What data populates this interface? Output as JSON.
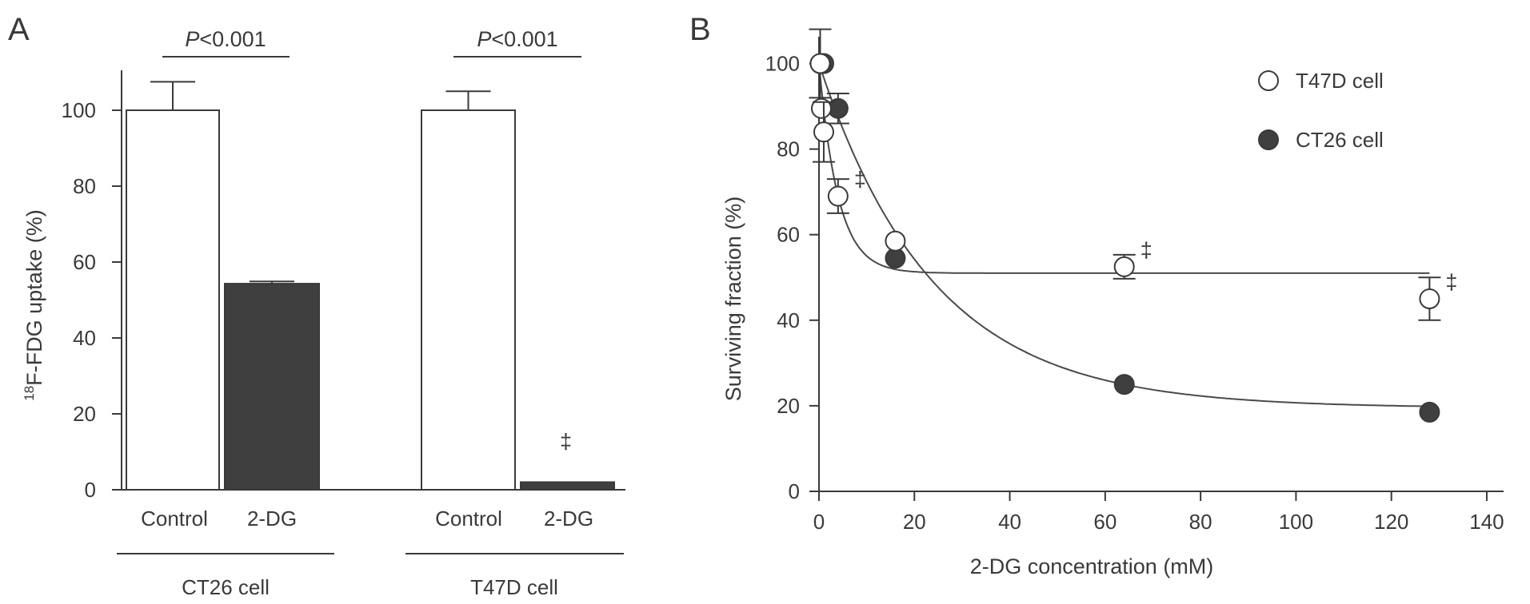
{
  "panels": [
    {
      "letter": "A",
      "chart_data": {
        "type": "bar",
        "ylabel_sup": "18",
        "ylabel": "F-FDG uptake (%)",
        "ylim": [
          0,
          110
        ],
        "yticks": [
          0,
          20,
          40,
          60,
          80,
          100
        ],
        "groups": [
          {
            "name": "CT26 cell",
            "bars": [
              {
                "label": "Control",
                "value": 100,
                "error": 7.5,
                "fill": "white",
                "annotation": ""
              },
              {
                "label": "2-DG",
                "value": 54.3,
                "error": 0.6,
                "fill": "dark",
                "annotation": ""
              }
            ],
            "significance": {
              "italic": "P",
              "rest": "<0.001"
            }
          },
          {
            "name": "T47D cell",
            "bars": [
              {
                "label": "Control",
                "value": 100,
                "error": 5,
                "fill": "white",
                "annotation": ""
              },
              {
                "label": "2-DG",
                "value": 2,
                "error": 0,
                "fill": "dark",
                "annotation": "‡"
              }
            ],
            "significance": {
              "italic": "P",
              "rest": "<0.001"
            }
          }
        ]
      }
    },
    {
      "letter": "B",
      "chart_data": {
        "type": "scatter",
        "xlabel": "2-DG concentration (mM)",
        "ylabel": "Surviving fraction (%)",
        "xlim": [
          0,
          140
        ],
        "ylim": [
          0,
          110
        ],
        "xticks": [
          0,
          20,
          40,
          60,
          80,
          100,
          120,
          140
        ],
        "yticks": [
          0,
          20,
          40,
          60,
          80,
          100
        ],
        "legend_position": "top-right",
        "series": [
          {
            "name": "T47D cell",
            "marker": "open-circle",
            "points": [
              {
                "x": 0.25,
                "y": 100,
                "err": 8,
                "mark": ""
              },
              {
                "x": 0.5,
                "y": 89.5,
                "err": 0,
                "mark": ""
              },
              {
                "x": 1,
                "y": 84,
                "err": 7,
                "mark": ""
              },
              {
                "x": 4,
                "y": 69,
                "err": 4,
                "mark": "‡"
              },
              {
                "x": 16,
                "y": 58.5,
                "err": 0,
                "mark": ""
              },
              {
                "x": 64,
                "y": 52.5,
                "err": 2.8,
                "mark": "‡"
              },
              {
                "x": 128,
                "y": 45,
                "err": 5,
                "mark": "‡"
              }
            ],
            "fit": {
              "plateau": 51,
              "span": 49,
              "k": 0.25
            }
          },
          {
            "name": "CT26 cell",
            "marker": "filled-circle",
            "points": [
              {
                "x": 0.25,
                "y": 100,
                "err": 0,
                "mark": ""
              },
              {
                "x": 1,
                "y": 100,
                "err": 0,
                "mark": ""
              },
              {
                "x": 4,
                "y": 89.5,
                "err": 3.5,
                "mark": ""
              },
              {
                "x": 16,
                "y": 54.5,
                "err": 0,
                "mark": ""
              },
              {
                "x": 64,
                "y": 25,
                "err": 0,
                "mark": ""
              },
              {
                "x": 128,
                "y": 18.5,
                "err": 0,
                "mark": ""
              }
            ],
            "fit": {
              "plateau": 19.5,
              "span": 80.5,
              "k": 0.042
            }
          }
        ]
      }
    }
  ]
}
